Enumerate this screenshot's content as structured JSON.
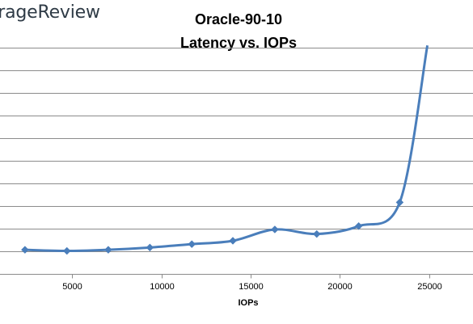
{
  "watermark": "orageReview",
  "chart_data": {
    "type": "line",
    "title_lines": [
      "Oracle-90-10",
      "Latency vs. IOPs"
    ],
    "xlabel": "IOPs",
    "ylabel": "",
    "xlim": [
      0,
      28000
    ],
    "ylim": [
      0,
      10
    ],
    "x_ticks": [
      5000,
      10000,
      15000,
      20000,
      25000
    ],
    "y_gridlines": [
      1,
      2,
      3,
      4,
      5,
      6,
      7,
      8,
      9,
      10
    ],
    "grid": true,
    "series": [
      {
        "color": "#4a7ebb",
        "points": [
          [
            2350,
            1.05
          ],
          [
            4700,
            1.0
          ],
          [
            7020,
            1.05
          ],
          [
            9350,
            1.15
          ],
          [
            11700,
            1.3
          ],
          [
            14000,
            1.45
          ],
          [
            16350,
            1.95
          ],
          [
            18700,
            1.75
          ],
          [
            21050,
            2.1
          ],
          [
            23350,
            3.15
          ],
          [
            24900,
            10.1
          ]
        ]
      }
    ]
  }
}
